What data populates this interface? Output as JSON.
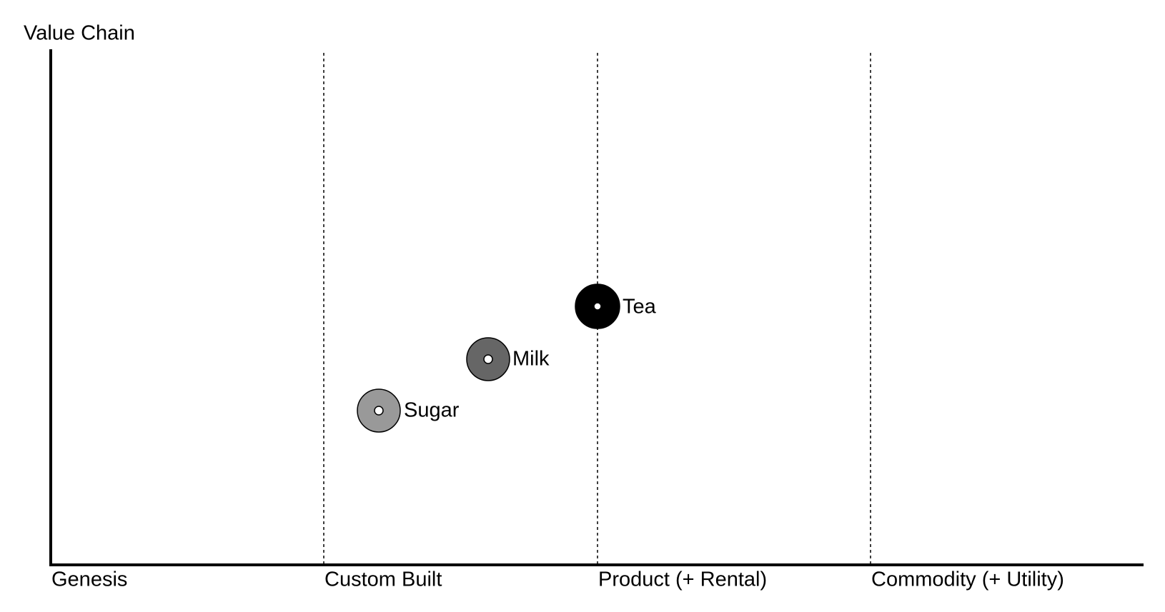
{
  "header": {
    "title": "Value Chain"
  },
  "stages": [
    "Genesis",
    "Custom Built",
    "Product (+ Rental)",
    "Commodity (+ Utility)"
  ],
  "nodes": [
    {
      "label": "Tea"
    },
    {
      "label": "Milk"
    },
    {
      "label": "Sugar"
    }
  ]
}
